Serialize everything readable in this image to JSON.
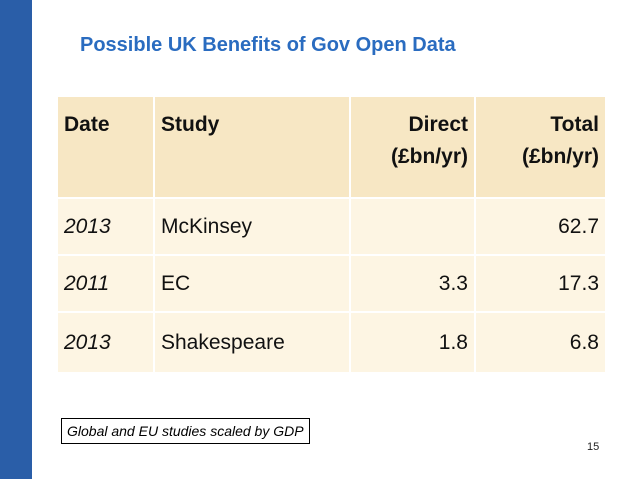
{
  "slide": {
    "title": "Possible UK Benefits of Gov Open Data",
    "note": "Global and EU studies scaled by GDP",
    "page_number": "15",
    "accent_color": "#2a5ea8",
    "title_color": "#2a6cc0"
  },
  "table": {
    "headers": {
      "date": "Date",
      "study": "Study",
      "direct_line1": "Direct",
      "direct_line2": "(£bn/yr)",
      "total_line1": "Total",
      "total_line2": "(£bn/yr)"
    },
    "rows": [
      {
        "date": "2013",
        "study": "McKinsey",
        "direct": "",
        "total": "62.7"
      },
      {
        "date": "2011",
        "study": "EC",
        "direct": "3.3",
        "total": "17.3"
      },
      {
        "date": "2013",
        "study": "Shakespeare",
        "direct": "1.8",
        "total": "6.8"
      }
    ]
  }
}
